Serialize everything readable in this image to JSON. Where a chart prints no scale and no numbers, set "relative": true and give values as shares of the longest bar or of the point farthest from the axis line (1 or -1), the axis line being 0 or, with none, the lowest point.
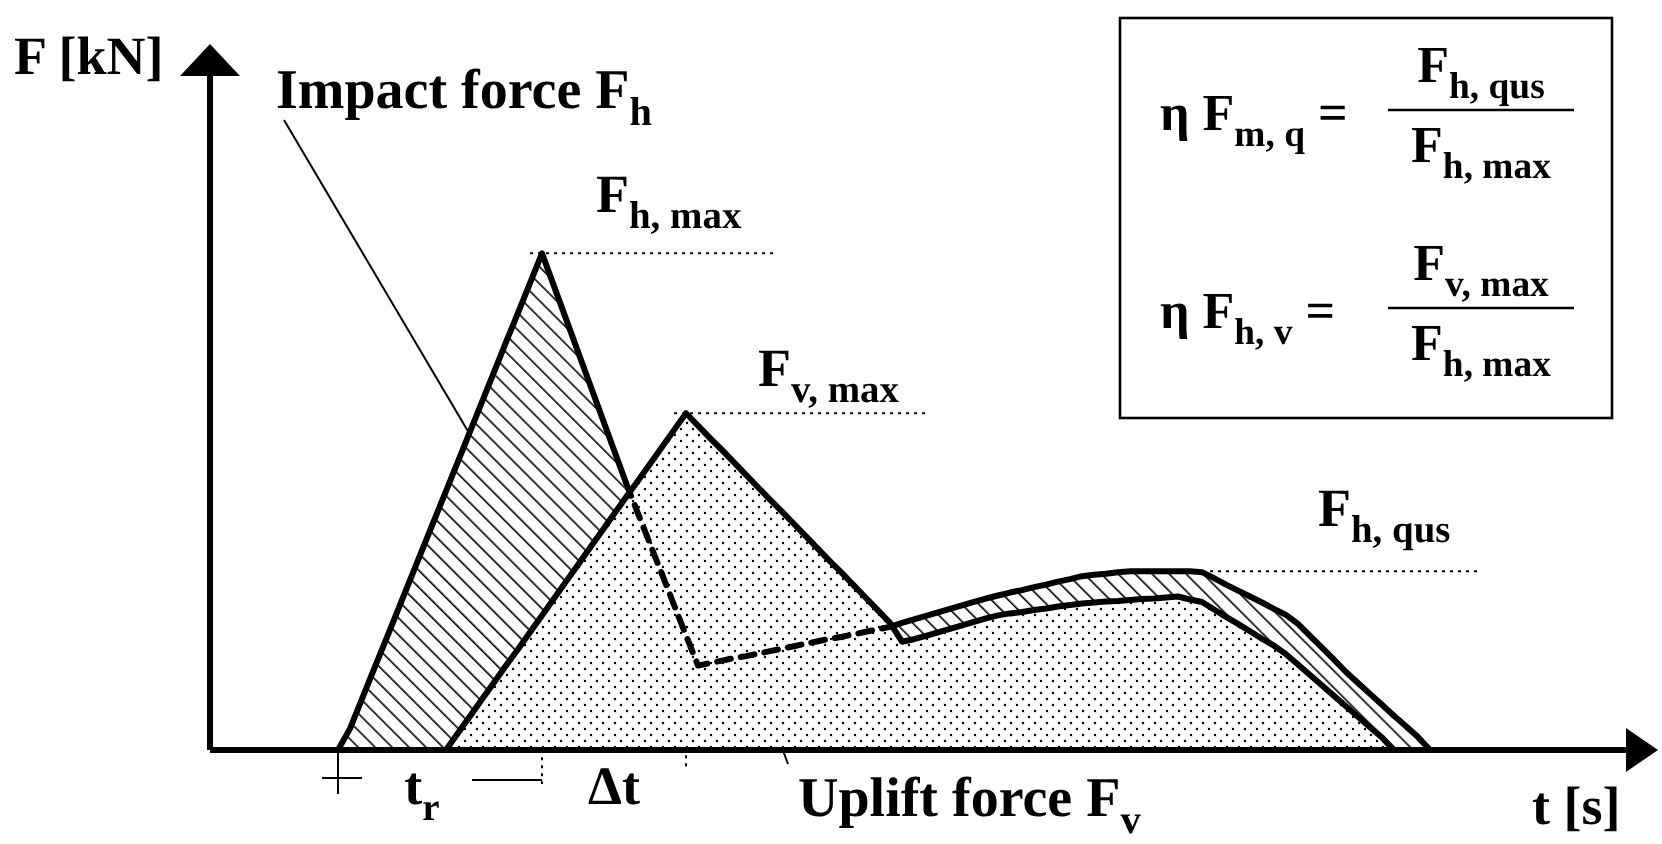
{
  "chart_data": {
    "type": "area",
    "relative": true,
    "xlabel": "t [s]",
    "ylabel": "F [kN]",
    "categories": [
      null,
      null,
      null,
      null,
      null,
      null,
      null,
      null,
      null,
      null,
      null,
      null,
      null,
      null,
      null,
      null,
      null,
      "t$_{r}$",
      null,
      null,
      null,
      null,
      null,
      null,
      null,
      null,
      null,
      null,
      null,
      null,
      null,
      null,
      null,
      "Δt",
      null,
      null,
      null,
      null,
      null,
      null,
      null,
      null,
      null,
      null,
      null,
      null,
      null,
      null,
      null,
      null,
      null,
      null,
      null,
      null,
      null,
      null,
      null,
      null,
      null,
      null,
      null,
      null,
      null,
      null,
      null,
      null,
      null,
      null,
      null,
      null,
      null,
      null,
      null,
      null,
      null,
      null,
      null,
      null,
      null,
      null,
      null,
      null,
      null,
      null,
      null,
      null,
      null,
      null,
      null,
      null,
      null,
      null,
      null,
      null,
      null,
      null,
      null,
      null,
      null,
      null,
      null,
      null,
      null,
      null,
      null,
      null,
      null,
      null,
      null,
      null,
      null,
      null,
      null,
      null,
      null,
      null,
      null,
      null
    ],
    "series": [
      {
        "name": "Impact force F$_{h}$",
        "color": "#000000",
        "values": [
          null,
          null,
          null,
          null,
          null,
          null,
          null,
          null,
          null,
          null,
          0,
          0.043,
          0.103,
          0.163,
          0.222,
          0.282,
          0.342,
          0.402,
          0.462,
          0.521,
          0.581,
          0.641,
          0.701,
          0.761,
          0.821,
          0.88,
          0.94,
          1,
          0.934,
          0.868,
          0.802,
          0.736,
          0.67,
          0.604,
          0.538,
          null,
          null,
          null,
          null,
          null,
          null,
          null,
          null,
          null,
          null,
          null,
          null,
          null,
          null,
          null,
          null,
          null,
          null,
          null,
          null,
          null,
          0.248,
          0.256,
          0.263,
          0.27,
          0.277,
          0.284,
          0.291,
          0.298,
          0.305,
          0.311,
          0.317,
          0.322,
          0.328,
          0.333,
          0.339,
          0.344,
          0.35,
          0.353,
          0.355,
          0.358,
          0.36,
          0.36,
          0.36,
          0.36,
          0.36,
          0.36,
          0.358,
          0.346,
          0.333,
          0.321,
          0.309,
          0.297,
          0.284,
          0.272,
          0.254,
          0.23,
          0.206,
          0.182,
          0.157,
          0.135,
          0.113,
          0.091,
          0.069,
          0.048,
          0.026,
          0,
          null,
          null,
          null,
          null,
          null,
          null,
          null,
          null,
          null,
          null,
          null,
          null,
          null,
          null,
          null,
          null
        ]
      },
      {
        "name": "Uplift force F$_{v}$",
        "color": "#000000",
        "values": [
          null,
          null,
          null,
          null,
          null,
          null,
          null,
          null,
          null,
          null,
          null,
          null,
          null,
          null,
          null,
          null,
          null,
          null,
          null,
          0,
          0.034,
          0.068,
          0.102,
          0.136,
          0.17,
          0.203,
          0.237,
          0.271,
          0.305,
          0.339,
          0.373,
          0.407,
          0.441,
          0.475,
          0.509,
          0.542,
          0.576,
          0.61,
          0.644,
          0.678,
          0.653,
          0.628,
          0.604,
          0.579,
          0.554,
          0.529,
          0.504,
          0.48,
          0.455,
          0.43,
          0.405,
          0.38,
          0.356,
          0.331,
          0.306,
          0.281,
          0.256,
          0.218,
          0.223,
          0.23,
          0.237,
          0.244,
          0.251,
          0.258,
          0.265,
          0.271,
          0.275,
          0.278,
          0.282,
          0.285,
          0.289,
          0.292,
          0.295,
          0.297,
          0.299,
          0.3,
          0.302,
          0.304,
          0.305,
          0.307,
          0.309,
          0.303,
          0.298,
          0.283,
          0.268,
          0.254,
          0.239,
          0.224,
          0.21,
          0.193,
          0.172,
          0.151,
          0.13,
          0.109,
          0.088,
          0.067,
          0.046,
          0.025,
          0,
          null,
          null,
          null,
          null,
          null,
          null,
          null,
          null,
          null,
          null,
          null,
          null,
          null,
          null,
          null,
          null,
          null,
          null,
          null
        ]
      },
      {
        "type": "line",
        "line_style": "dashed",
        "color": "#000000",
        "values": [
          null,
          null,
          null,
          null,
          null,
          null,
          null,
          null,
          null,
          null,
          null,
          null,
          null,
          null,
          null,
          null,
          null,
          null,
          null,
          null,
          null,
          null,
          null,
          null,
          null,
          null,
          null,
          null,
          null,
          null,
          null,
          null,
          null,
          null,
          0.538,
          0.476,
          0.415,
          0.354,
          0.292,
          0.231,
          0.17,
          0.175,
          0.18,
          0.185,
          0.189,
          0.194,
          0.199,
          0.204,
          0.209,
          0.214,
          0.219,
          0.224,
          0.228,
          0.233,
          0.238,
          0.243,
          0.248,
          null,
          null,
          null,
          null,
          null,
          null,
          null,
          null,
          null,
          null,
          null,
          null,
          null,
          null,
          null,
          null,
          null,
          null,
          null,
          null,
          null,
          null,
          null,
          null,
          null,
          null,
          null,
          null,
          null,
          null,
          null,
          null,
          null,
          null,
          null,
          null,
          null,
          null,
          null,
          null,
          null,
          null,
          null,
          null,
          null,
          null,
          null,
          null,
          null,
          null,
          null,
          null,
          null,
          null,
          null,
          null,
          null,
          null,
          null,
          null,
          null
        ]
      }
    ],
    "annotations": [
      "F$_{h, max}$",
      "F$_{v, max}$",
      "F$_{h, qus}$",
      "η F$_{m, q}$ =",
      "F$_{h, qus}$",
      "F$_{h, max}$",
      "η F$_{h, v}$ =",
      "F$_{v, max}$",
      "F$_{h, max}$"
    ]
  }
}
